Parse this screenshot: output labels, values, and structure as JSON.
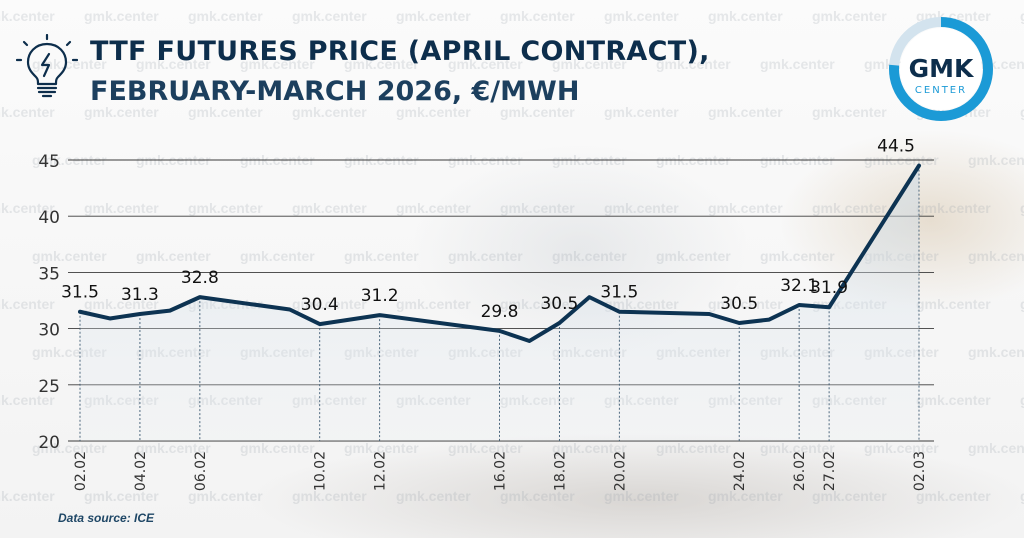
{
  "header": {
    "title_line1": "TTF FUTURES PRICE (APRIL CONTRACT),",
    "title_line2": "FEBRUARY-MARCH 2026, €/MWH"
  },
  "logo": {
    "line1": "GMK",
    "line2": "CENTER"
  },
  "watermark_text": "gmk.center",
  "source": "Data source: ICE",
  "icon": "lightbulb-icon",
  "colors": {
    "line": "#0d3352",
    "title": "#0d2e4c",
    "logo_ring": "#1b9ad6",
    "grid": "#333333"
  },
  "chart_data": {
    "type": "line",
    "title": "TTF FUTURES PRICE (APRIL CONTRACT), FEBRUARY-MARCH 2026, €/MWH",
    "ylim": [
      20,
      45
    ],
    "yticks": [
      20,
      25,
      30,
      35,
      40,
      45
    ],
    "grid": true,
    "points": [
      {
        "date": "02.02",
        "value": 31.5,
        "tick": true,
        "label": "31.5"
      },
      {
        "date": "03.02",
        "value": 30.9,
        "tick": false,
        "label": ""
      },
      {
        "date": "04.02",
        "value": 31.3,
        "tick": true,
        "label": "31.3"
      },
      {
        "date": "05.02",
        "value": 31.6,
        "tick": false,
        "label": ""
      },
      {
        "date": "06.02",
        "value": 32.8,
        "tick": true,
        "label": "32.8"
      },
      {
        "date": "09.02",
        "value": 31.7,
        "tick": false,
        "label": ""
      },
      {
        "date": "10.02",
        "value": 30.4,
        "tick": true,
        "label": "30.4"
      },
      {
        "date": "11.02",
        "value": 30.8,
        "tick": false,
        "label": ""
      },
      {
        "date": "12.02",
        "value": 31.2,
        "tick": true,
        "label": "31.2"
      },
      {
        "date": "16.02",
        "value": 29.8,
        "tick": true,
        "label": "29.8"
      },
      {
        "date": "17.02",
        "value": 28.9,
        "tick": false,
        "label": ""
      },
      {
        "date": "18.02",
        "value": 30.5,
        "tick": true,
        "label": "30.5"
      },
      {
        "date": "19.02",
        "value": 32.8,
        "tick": false,
        "label": ""
      },
      {
        "date": "20.02",
        "value": 31.5,
        "tick": true,
        "label": "31.5"
      },
      {
        "date": "23.02",
        "value": 31.3,
        "tick": false,
        "label": ""
      },
      {
        "date": "24.02",
        "value": 30.5,
        "tick": true,
        "label": "30.5"
      },
      {
        "date": "25.02",
        "value": 30.8,
        "tick": false,
        "label": ""
      },
      {
        "date": "26.02",
        "value": 32.1,
        "tick": true,
        "label": "32.1"
      },
      {
        "date": "27.02",
        "value": 31.9,
        "tick": true,
        "label": "31.9"
      },
      {
        "date": "02.03",
        "value": 44.5,
        "tick": true,
        "label": "44.5"
      }
    ]
  }
}
